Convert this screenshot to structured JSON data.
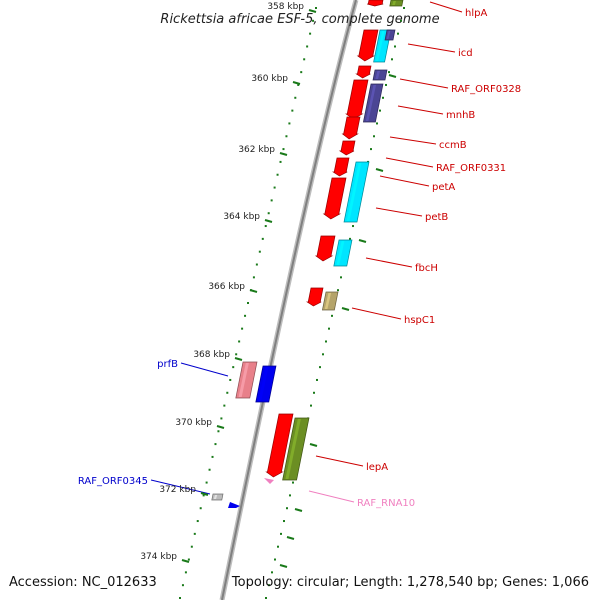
{
  "title": "Rickettsia africae ESF-5, complete genome",
  "footer": {
    "accession": "Accession: NC_012633",
    "summary": "Topology: circular; Length: 1,278,540 bp; Genes: 1,066"
  },
  "scale": {
    "ticks": [
      "358 kbp",
      "360 kbp",
      "362 kbp",
      "364 kbp",
      "366 kbp",
      "368 kbp",
      "370 kbp",
      "372 kbp",
      "374 kbp"
    ]
  },
  "colors": {
    "forward_cds": "#ff0000",
    "cyan_track": "#00e5ff",
    "navy_track": "#4b4594",
    "olive_track": "#6b8e23",
    "khaki_track": "#b5a46a",
    "pink_track": "#e8808a",
    "reverse_cds": "#0000ee",
    "rna": "#f080c0",
    "label_forward": "#cc0000",
    "label_reverse": "#0000cc",
    "label_rna": "#f080c0",
    "ticks_green": "#1a7a1a"
  },
  "genes_forward": [
    "hlpA",
    "icd",
    "RAF_ORF0328",
    "mnhB",
    "ccmB",
    "RAF_ORF0331",
    "petA",
    "petB",
    "fbcH",
    "hspC1",
    "lepA"
  ],
  "genes_reverse": [
    "prfB",
    "RAF_ORF0345"
  ],
  "genes_rna": [
    "RAF_RNA10"
  ]
}
